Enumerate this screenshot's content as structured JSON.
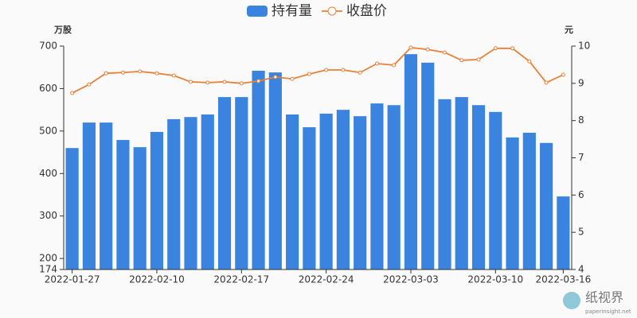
{
  "chart_data": {
    "type": "bar-line",
    "y_label": "万股",
    "y2_label": "元",
    "categories": [
      "2022-01-27",
      null,
      null,
      null,
      null,
      "2022-02-10",
      null,
      null,
      null,
      null,
      "2022-02-17",
      null,
      null,
      null,
      null,
      "2022-02-24",
      null,
      null,
      null,
      null,
      "2022-03-03",
      null,
      null,
      null,
      null,
      "2022-03-10",
      null,
      null,
      null,
      "2022-03-16"
    ],
    "series": [
      {
        "name": "持有量",
        "type": "bar",
        "color": "#3a84e0",
        "values": [
          460,
          520,
          520,
          479,
          462,
          498,
          528,
          533,
          539,
          580,
          580,
          642,
          638,
          539,
          509,
          541,
          550,
          535,
          565,
          561,
          681,
          661,
          575,
          580,
          561,
          545,
          485,
          496,
          472,
          346
        ]
      },
      {
        "name": "收盘价",
        "type": "line",
        "axis": "y2",
        "color": "#e8803a",
        "values": [
          8.74,
          8.97,
          9.27,
          9.29,
          9.32,
          9.27,
          9.21,
          9.04,
          9.02,
          9.04,
          9.0,
          9.06,
          9.17,
          9.12,
          9.25,
          9.36,
          9.36,
          9.29,
          9.53,
          9.49,
          9.96,
          9.91,
          9.83,
          9.62,
          9.64,
          9.94,
          9.94,
          9.59,
          9.02,
          9.23
        ]
      }
    ],
    "ylim": [
      174,
      700
    ],
    "yticks": [
      174,
      200,
      300,
      400,
      500,
      600,
      700
    ],
    "y2lim": [
      4,
      10
    ],
    "y2ticks": [
      4,
      5,
      6,
      7,
      8,
      9,
      10
    ],
    "legend": "top",
    "watermark": {
      "text": "纸视界",
      "url": "paperinsight.net"
    }
  }
}
